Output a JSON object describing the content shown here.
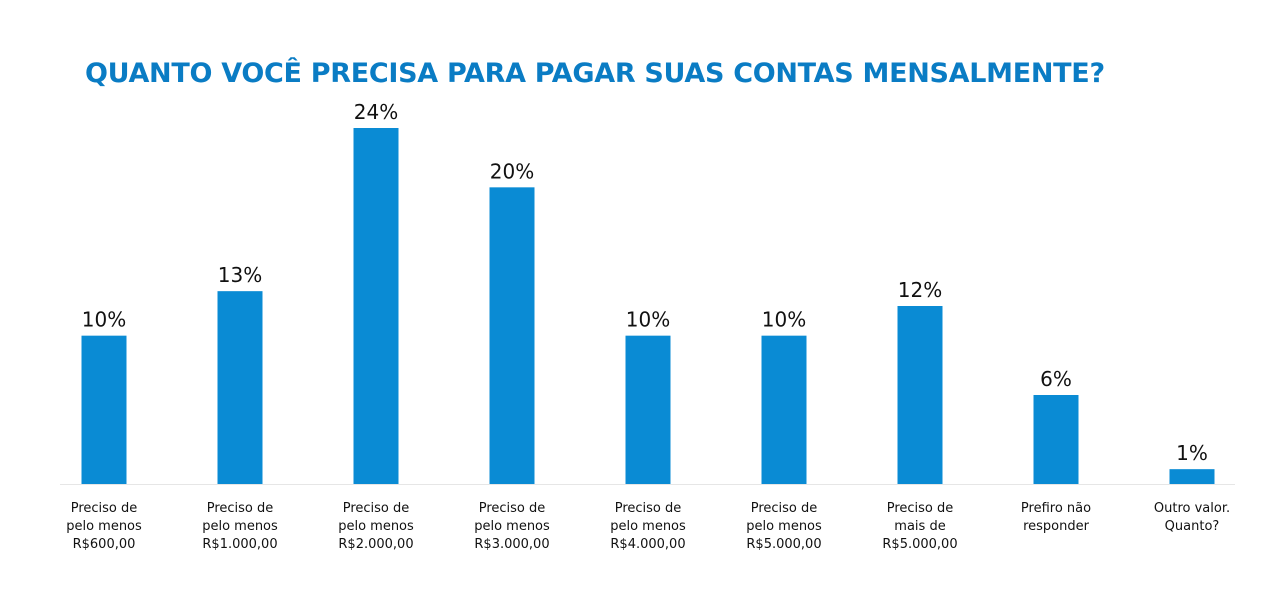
{
  "chart_data": {
    "type": "bar",
    "title": "QUANTO VOCÊ PRECISA PARA PAGAR SUAS CONTAS MENSALMENTE?",
    "unit": "%",
    "categories": [
      [
        "Preciso de",
        "pelo menos",
        "R$600,00"
      ],
      [
        "Preciso de",
        "pelo menos",
        "R$1.000,00"
      ],
      [
        "Preciso de",
        "pelo menos",
        "R$2.000,00"
      ],
      [
        "Preciso de",
        "pelo menos",
        "R$3.000,00"
      ],
      [
        "Preciso de",
        "pelo menos",
        "R$4.000,00"
      ],
      [
        "Preciso de",
        "pelo menos",
        "R$5.000,00"
      ],
      [
        "Preciso de",
        "mais de",
        "R$5.000,00"
      ],
      [
        "Prefiro não",
        "responder"
      ],
      [
        "Outro valor.",
        "Quanto?"
      ]
    ],
    "values": [
      10,
      13,
      24,
      20,
      10,
      10,
      12,
      6,
      1
    ],
    "value_labels": [
      "10%",
      "13%",
      "24%",
      "20%",
      "10%",
      "10%",
      "12%",
      "6%",
      "1%"
    ],
    "ylim": [
      0,
      24
    ],
    "grid": false,
    "legend": "none",
    "bar_color": "#0a8bd4",
    "title_color": "#0a7cc4"
  }
}
